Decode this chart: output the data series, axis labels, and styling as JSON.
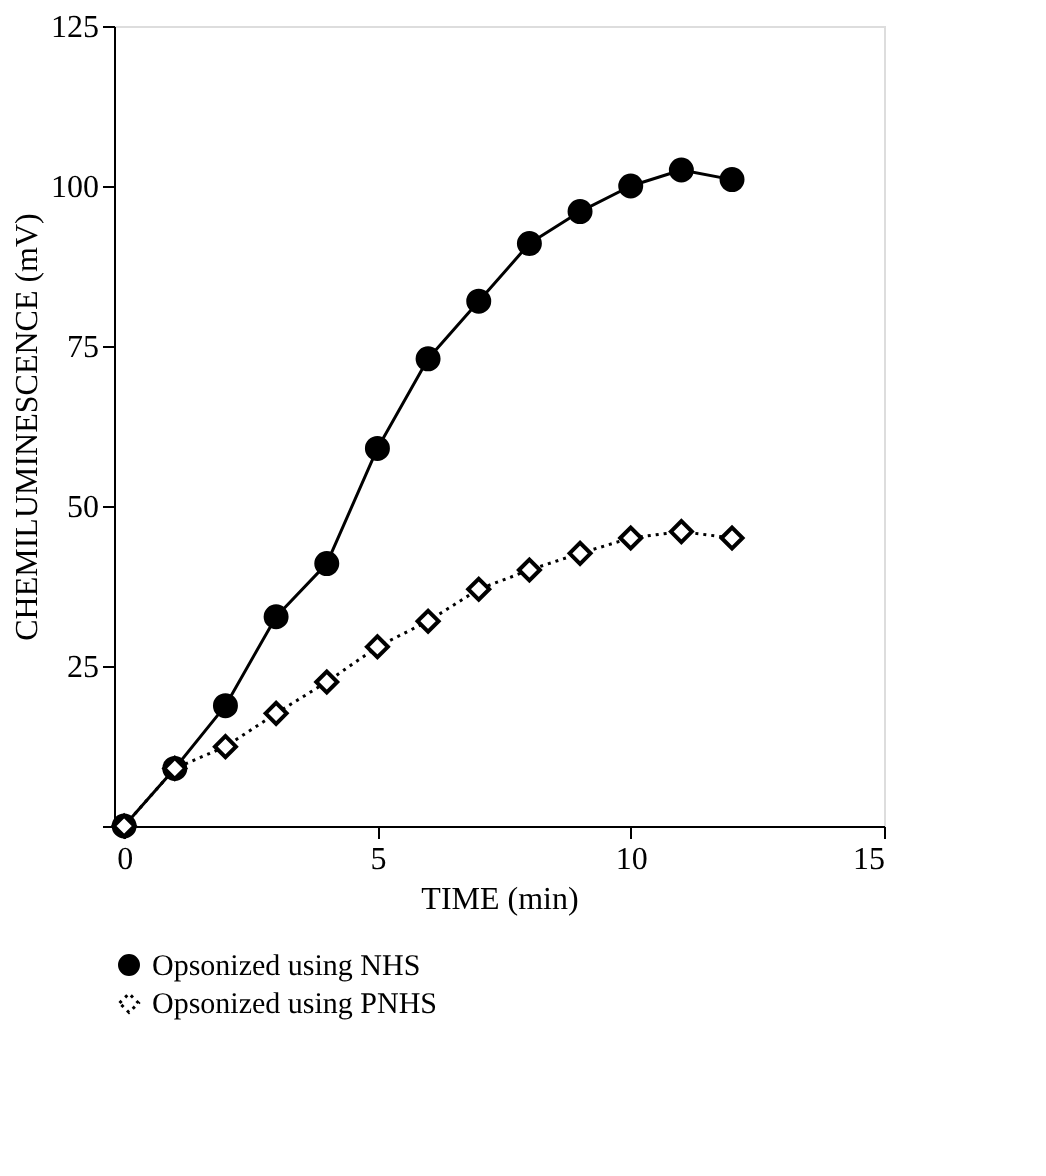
{
  "chart_data": {
    "type": "line",
    "xlabel": "TIME (min)",
    "ylabel": "CHEMILUMINESCENCE (mV)",
    "x": [
      0,
      1,
      2,
      3,
      4,
      5,
      6,
      7,
      8,
      9,
      10,
      11,
      12
    ],
    "series": [
      {
        "name": "Opsonized using NHS",
        "color": "#000000",
        "marker": "circle",
        "line_style": "solid",
        "values": [
          0,
          9,
          18.8,
          32.7,
          41,
          59,
          73,
          82,
          91,
          96,
          100,
          102.5,
          101
        ]
      },
      {
        "name": "Opsonized using PNHS",
        "color": "#000000",
        "marker": "diamond",
        "line_style": "dotted",
        "values": [
          0,
          9,
          12.4,
          17.6,
          22.5,
          28,
          32,
          37,
          40,
          42.6,
          45,
          46,
          45
        ]
      }
    ],
    "xlim": [
      -0.2,
      15
    ],
    "xticks": [
      0,
      5,
      10,
      15
    ],
    "ylim": [
      0,
      125
    ],
    "yticks": [
      {
        "value": 0,
        "label": null
      },
      25,
      50,
      75,
      100,
      125
    ],
    "grid": false,
    "legend": "bottom"
  }
}
